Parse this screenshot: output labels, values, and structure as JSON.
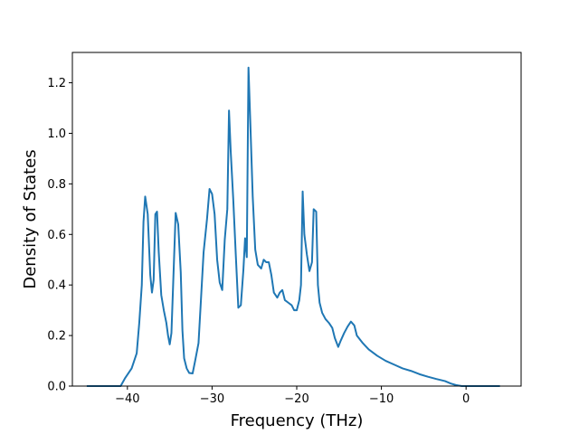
{
  "chart_data": {
    "type": "line",
    "xlabel": "Frequency (THz)",
    "ylabel": "Density of States",
    "xlim": [
      -46.5,
      6.5
    ],
    "ylim": [
      0,
      1.32
    ],
    "grid": false,
    "line_color": "#1f77b4",
    "xticks": [
      -40,
      -30,
      -20,
      -10,
      0
    ],
    "xtick_labels": [
      "−40",
      "−30",
      "−20",
      "−10",
      "0"
    ],
    "yticks": [
      0.0,
      0.2,
      0.4,
      0.6,
      0.8,
      1.0,
      1.2
    ],
    "ytick_labels": [
      "0.0",
      "0.2",
      "0.4",
      "0.6",
      "0.8",
      "1.0",
      "1.2"
    ],
    "series": [
      {
        "points": [
          [
            -44.8,
            0.0
          ],
          [
            -42,
            0.0
          ],
          [
            -40.8,
            0.0
          ],
          [
            -40.3,
            0.03
          ],
          [
            -39.5,
            0.07
          ],
          [
            -38.9,
            0.13
          ],
          [
            -38.6,
            0.25
          ],
          [
            -38.3,
            0.4
          ],
          [
            -38.1,
            0.65
          ],
          [
            -37.9,
            0.75
          ],
          [
            -37.6,
            0.68
          ],
          [
            -37.3,
            0.44
          ],
          [
            -37.1,
            0.37
          ],
          [
            -36.9,
            0.42
          ],
          [
            -36.7,
            0.68
          ],
          [
            -36.5,
            0.69
          ],
          [
            -36.3,
            0.53
          ],
          [
            -36.0,
            0.36
          ],
          [
            -35.7,
            0.3
          ],
          [
            -35.4,
            0.25
          ],
          [
            -35.2,
            0.2
          ],
          [
            -35.0,
            0.165
          ],
          [
            -34.8,
            0.21
          ],
          [
            -34.6,
            0.4
          ],
          [
            -34.3,
            0.685
          ],
          [
            -34.0,
            0.64
          ],
          [
            -33.7,
            0.45
          ],
          [
            -33.5,
            0.22
          ],
          [
            -33.3,
            0.11
          ],
          [
            -33.0,
            0.07
          ],
          [
            -32.7,
            0.052
          ],
          [
            -32.3,
            0.05
          ],
          [
            -32.0,
            0.1
          ],
          [
            -31.6,
            0.17
          ],
          [
            -31.3,
            0.35
          ],
          [
            -31.0,
            0.53
          ],
          [
            -30.6,
            0.66
          ],
          [
            -30.3,
            0.78
          ],
          [
            -30.0,
            0.76
          ],
          [
            -29.7,
            0.68
          ],
          [
            -29.4,
            0.5
          ],
          [
            -29.1,
            0.41
          ],
          [
            -28.8,
            0.38
          ],
          [
            -28.5,
            0.58
          ],
          [
            -28.2,
            0.7
          ],
          [
            -28.0,
            1.09
          ],
          [
            -27.8,
            0.93
          ],
          [
            -27.5,
            0.74
          ],
          [
            -27.2,
            0.52
          ],
          [
            -26.9,
            0.31
          ],
          [
            -26.6,
            0.32
          ],
          [
            -26.3,
            0.46
          ],
          [
            -26.1,
            0.585
          ],
          [
            -25.9,
            0.51
          ],
          [
            -25.7,
            1.26
          ],
          [
            -25.5,
            1.06
          ],
          [
            -25.2,
            0.75
          ],
          [
            -24.9,
            0.54
          ],
          [
            -24.6,
            0.48
          ],
          [
            -24.2,
            0.465
          ],
          [
            -23.9,
            0.5
          ],
          [
            -23.6,
            0.49
          ],
          [
            -23.3,
            0.49
          ],
          [
            -23.0,
            0.44
          ],
          [
            -22.7,
            0.37
          ],
          [
            -22.3,
            0.35
          ],
          [
            -22.0,
            0.37
          ],
          [
            -21.7,
            0.38
          ],
          [
            -21.4,
            0.34
          ],
          [
            -21.0,
            0.33
          ],
          [
            -20.6,
            0.32
          ],
          [
            -20.3,
            0.3
          ],
          [
            -20.0,
            0.3
          ],
          [
            -19.7,
            0.34
          ],
          [
            -19.5,
            0.4
          ],
          [
            -19.3,
            0.77
          ],
          [
            -19.1,
            0.6
          ],
          [
            -18.8,
            0.52
          ],
          [
            -18.5,
            0.455
          ],
          [
            -18.2,
            0.49
          ],
          [
            -18.0,
            0.7
          ],
          [
            -17.7,
            0.69
          ],
          [
            -17.5,
            0.4
          ],
          [
            -17.3,
            0.33
          ],
          [
            -17.0,
            0.29
          ],
          [
            -16.6,
            0.265
          ],
          [
            -16.2,
            0.25
          ],
          [
            -15.8,
            0.23
          ],
          [
            -15.5,
            0.19
          ],
          [
            -15.1,
            0.155
          ],
          [
            -14.8,
            0.18
          ],
          [
            -14.4,
            0.21
          ],
          [
            -14.0,
            0.235
          ],
          [
            -13.6,
            0.255
          ],
          [
            -13.2,
            0.24
          ],
          [
            -12.9,
            0.2
          ],
          [
            -12.2,
            0.17
          ],
          [
            -11.5,
            0.145
          ],
          [
            -10.5,
            0.12
          ],
          [
            -9.5,
            0.1
          ],
          [
            -8.5,
            0.085
          ],
          [
            -7.5,
            0.07
          ],
          [
            -6.5,
            0.06
          ],
          [
            -5.5,
            0.047
          ],
          [
            -4.5,
            0.037
          ],
          [
            -3.5,
            0.028
          ],
          [
            -2.5,
            0.02
          ],
          [
            -1.8,
            0.01
          ],
          [
            -1.2,
            0.004
          ],
          [
            -0.5,
            0.0
          ],
          [
            1.0,
            0.0
          ],
          [
            4.0,
            0.0
          ]
        ]
      }
    ]
  }
}
